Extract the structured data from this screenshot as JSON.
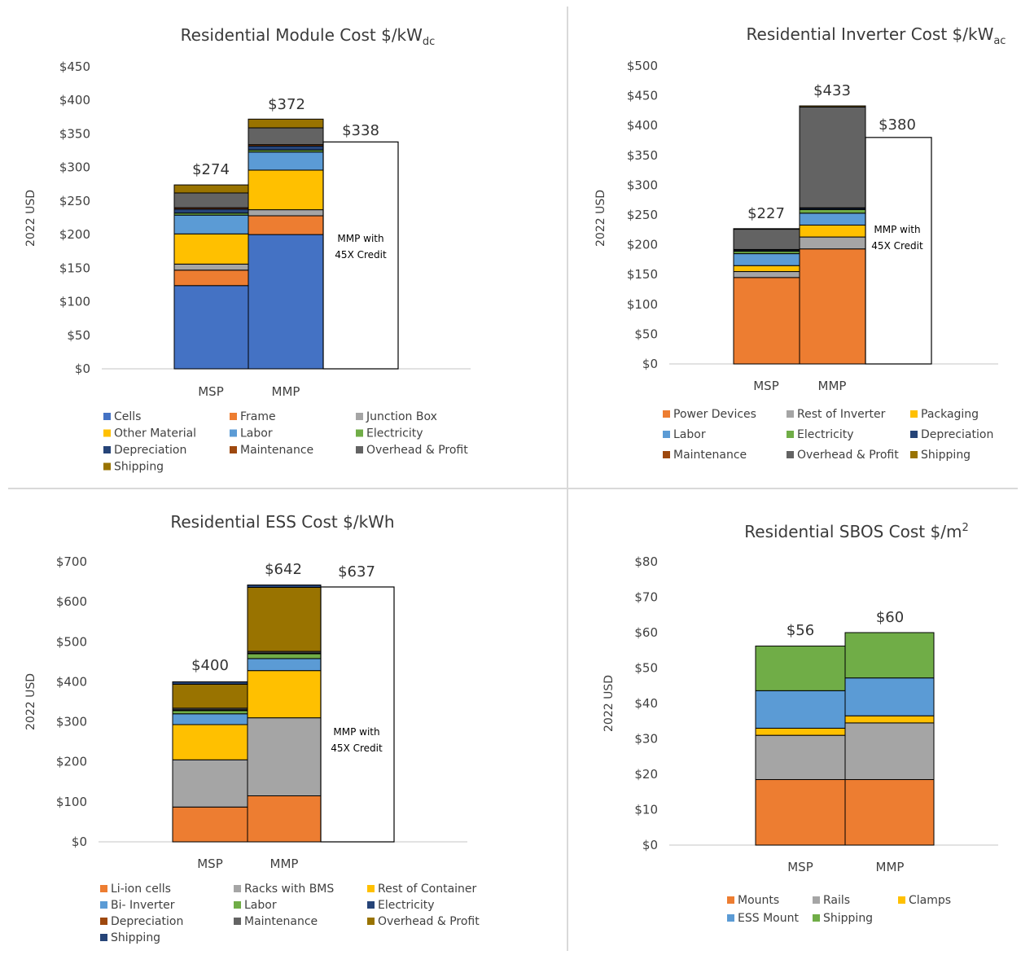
{
  "colors": {
    "cells": "#4472C4",
    "orange": "#ED7D31",
    "gray": "#A5A5A5",
    "gold": "#FFC000",
    "blue": "#5B9BD5",
    "green": "#70AD47",
    "navy": "#264478",
    "brown": "#9E480E",
    "darkgray": "#636363",
    "olive": "#997300"
  },
  "chart_data": [
    {
      "type": "bar",
      "stacked": true,
      "title": {
        "main": "Residential Module Cost $/kW",
        "sub": "dc",
        "sup": ""
      },
      "ylabel": "2022 USD",
      "ylim": [
        0,
        450
      ],
      "yticks": [
        "$0",
        "$50",
        "$100",
        "$150",
        "$200",
        "$250",
        "$300",
        "$350",
        "$400",
        "$450"
      ],
      "categories": [
        "MSP",
        "MMP"
      ],
      "totals": [
        "$274",
        "$372"
      ],
      "series": [
        {
          "name": "Cells",
          "color": "#4472C4",
          "values": [
            124,
            200
          ]
        },
        {
          "name": "Frame",
          "color": "#ED7D31",
          "values": [
            23,
            28
          ]
        },
        {
          "name": "Junction Box",
          "color": "#A5A5A5",
          "values": [
            9,
            9
          ]
        },
        {
          "name": "Other Material",
          "color": "#FFC000",
          "values": [
            45,
            59
          ]
        },
        {
          "name": "Labor",
          "color": "#5B9BD5",
          "values": [
            28,
            27
          ]
        },
        {
          "name": "Electricity",
          "color": "#70AD47",
          "values": [
            3,
            3
          ]
        },
        {
          "name": "Depreciation",
          "color": "#264478",
          "values": [
            6,
            6
          ]
        },
        {
          "name": "Maintenance",
          "color": "#9E480E",
          "values": [
            2,
            2
          ]
        },
        {
          "name": "Overhead & Profit",
          "color": "#636363",
          "values": [
            22,
            25
          ]
        },
        {
          "name": "Shipping",
          "color": "#997300",
          "values": [
            12,
            13
          ]
        }
      ],
      "credit": {
        "value": 338,
        "label": "$338",
        "note_line1": "MMP with",
        "note_line2": "45X Credit"
      }
    },
    {
      "type": "bar",
      "stacked": true,
      "title": {
        "main": "Residential Inverter Cost $/kW",
        "sub": "ac",
        "sup": ""
      },
      "ylabel": "2022 USD",
      "ylim": [
        0,
        500
      ],
      "yticks": [
        "$0",
        "$50",
        "$100",
        "$150",
        "$200",
        "$250",
        "$300",
        "$350",
        "$400",
        "$450",
        "$500"
      ],
      "categories": [
        "MSP",
        "MMP"
      ],
      "totals": [
        "$227",
        "$433"
      ],
      "series": [
        {
          "name": "Power Devices",
          "color": "#ED7D31",
          "values": [
            145,
            193
          ]
        },
        {
          "name": "Rest of Inverter",
          "color": "#A5A5A5",
          "values": [
            10,
            20
          ]
        },
        {
          "name": "Packaging",
          "color": "#FFC000",
          "values": [
            10,
            20
          ]
        },
        {
          "name": "Labor",
          "color": "#5B9BD5",
          "values": [
            20,
            20
          ]
        },
        {
          "name": "Electricity",
          "color": "#70AD47",
          "values": [
            4,
            6
          ]
        },
        {
          "name": "Depreciation",
          "color": "#264478",
          "values": [
            2,
            2
          ]
        },
        {
          "name": "Maintenance",
          "color": "#9E480E",
          "values": [
            1,
            1
          ]
        },
        {
          "name": "Overhead & Profit",
          "color": "#636363",
          "values": [
            34,
            169
          ]
        },
        {
          "name": "Shipping",
          "color": "#997300",
          "values": [
            1,
            2
          ]
        }
      ],
      "credit": {
        "value": 380,
        "label": "$380",
        "note_line1": "MMP with",
        "note_line2": "45X Credit"
      }
    },
    {
      "type": "bar",
      "stacked": true,
      "title": {
        "main": "Residential ESS Cost $/kWh",
        "sub": "",
        "sup": ""
      },
      "ylabel": "2022 USD",
      "ylim": [
        0,
        700
      ],
      "yticks": [
        "$0",
        "$100",
        "$200",
        "$300",
        "$400",
        "$500",
        "$600",
        "$700"
      ],
      "categories": [
        "MSP",
        "MMP"
      ],
      "totals": [
        "$400",
        "$642"
      ],
      "series": [
        {
          "name": "Li-ion cells",
          "color": "#ED7D31",
          "values": [
            87,
            115
          ]
        },
        {
          "name": "Racks with BMS",
          "color": "#A5A5A5",
          "values": [
            118,
            195
          ]
        },
        {
          "name": "Rest of Container",
          "color": "#FFC000",
          "values": [
            88,
            118
          ]
        },
        {
          "name": "Bi- Inverter",
          "color": "#5B9BD5",
          "values": [
            27,
            30
          ]
        },
        {
          "name": "Labor",
          "color": "#70AD47",
          "values": [
            8,
            12
          ]
        },
        {
          "name": "Electricity",
          "color": "#264478",
          "values": [
            1,
            1
          ]
        },
        {
          "name": "Depreciation",
          "color": "#9E480E",
          "values": [
            1,
            1
          ]
        },
        {
          "name": "Maintenance",
          "color": "#636363",
          "values": [
            4,
            4
          ]
        },
        {
          "name": "Overhead & Profit",
          "color": "#997300",
          "values": [
            60,
            160
          ]
        },
        {
          "name": "Shipping",
          "color": "#264478",
          "values": [
            6,
            6
          ]
        }
      ],
      "credit": {
        "value": 637,
        "label": "$637",
        "note_line1": "MMP with",
        "note_line2": "45X Credit"
      }
    },
    {
      "type": "bar",
      "stacked": true,
      "title": {
        "main": "Residential SBOS Cost $/m",
        "sub": "",
        "sup": "2"
      },
      "ylabel": "2022 USD",
      "ylim": [
        0,
        80
      ],
      "yticks": [
        "$0",
        "$10",
        "$20",
        "$30",
        "$40",
        "$50",
        "$60",
        "$70",
        "$80"
      ],
      "categories": [
        "MSP",
        "MMP"
      ],
      "totals": [
        "$56",
        "$60"
      ],
      "series": [
        {
          "name": "Mounts",
          "color": "#ED7D31",
          "values": [
            18.5,
            18.5
          ]
        },
        {
          "name": "Rails",
          "color": "#A5A5A5",
          "values": [
            12.5,
            16
          ]
        },
        {
          "name": "Clamps",
          "color": "#FFC000",
          "values": [
            2,
            2
          ]
        },
        {
          "name": "ESS Mount",
          "color": "#5B9BD5",
          "values": [
            10.6,
            10.7
          ]
        },
        {
          "name": "Shipping",
          "color": "#70AD47",
          "values": [
            12.6,
            12.8
          ]
        }
      ]
    }
  ]
}
